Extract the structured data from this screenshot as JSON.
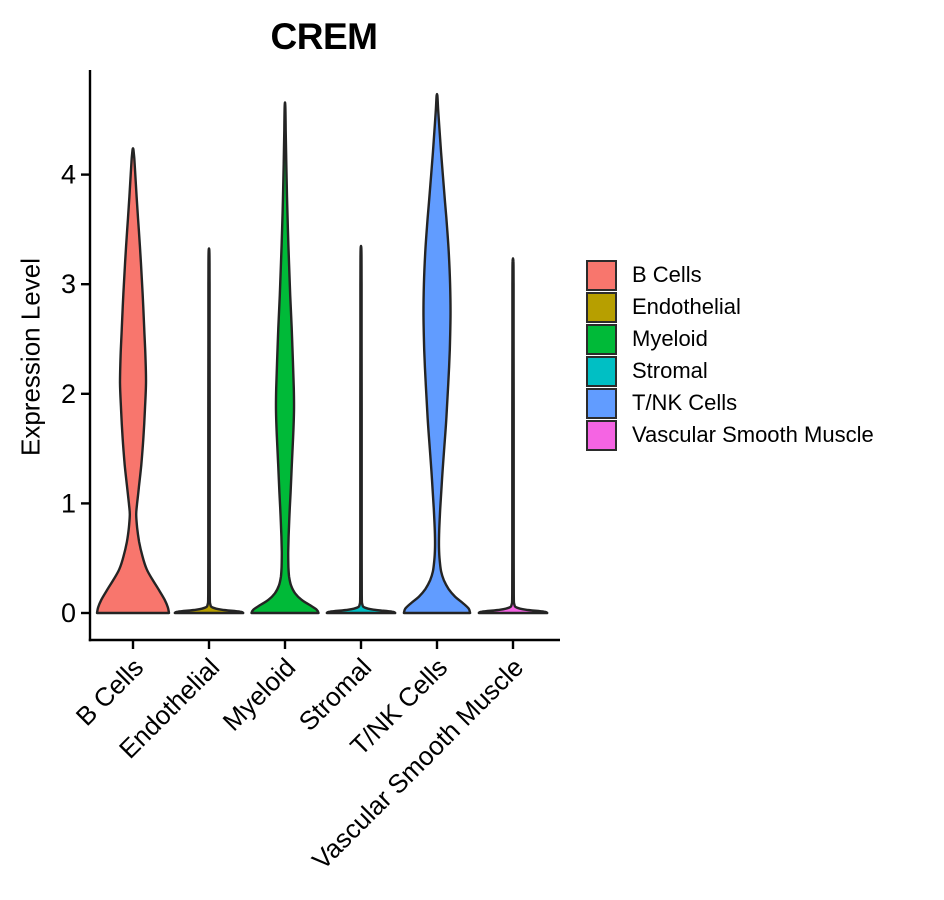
{
  "title": "CREM",
  "chart_data": {
    "type": "violin",
    "title": "CREM",
    "xlabel": "",
    "ylabel": "Expression Level",
    "yticks": [
      0,
      1,
      2,
      3,
      4
    ],
    "ylim": [
      -0.25,
      4.95
    ],
    "grid": false,
    "legend_position": "right",
    "categories": [
      "B Cells",
      "Endothelial",
      "Myeloid",
      "Stromal",
      "T/NK Cells",
      "Vascular Smooth Muscle"
    ],
    "violins": [
      {
        "name": "B Cells",
        "color": "#F8766D",
        "max_expression": 4.23,
        "peak_bulge_at": 2.1,
        "profile": [
          [
            0,
            1.0
          ],
          [
            0.05,
            0.97
          ],
          [
            0.12,
            0.88
          ],
          [
            0.2,
            0.74
          ],
          [
            0.3,
            0.55
          ],
          [
            0.4,
            0.38
          ],
          [
            0.52,
            0.26
          ],
          [
            0.65,
            0.17
          ],
          [
            0.78,
            0.115
          ],
          [
            0.9,
            0.09
          ],
          [
            1.0,
            0.115
          ],
          [
            1.15,
            0.165
          ],
          [
            1.35,
            0.23
          ],
          [
            1.6,
            0.29
          ],
          [
            1.85,
            0.33
          ],
          [
            2.1,
            0.36
          ],
          [
            2.35,
            0.345
          ],
          [
            2.6,
            0.31
          ],
          [
            2.9,
            0.27
          ],
          [
            3.2,
            0.22
          ],
          [
            3.5,
            0.16
          ],
          [
            3.8,
            0.1
          ],
          [
            4.0,
            0.065
          ],
          [
            4.15,
            0.035
          ],
          [
            4.23,
            0.01
          ]
        ]
      },
      {
        "name": "Endothelial",
        "color": "#B79F00",
        "max_expression": 3.29,
        "peak_bulge_at": 0,
        "profile": [
          [
            0,
            0.95
          ],
          [
            0.012,
            0.86
          ],
          [
            0.03,
            0.35
          ],
          [
            0.05,
            0.1
          ],
          [
            0.08,
            0.035
          ],
          [
            0.15,
            0.022
          ],
          [
            0.5,
            0.02
          ],
          [
            1.5,
            0.02
          ],
          [
            2.5,
            0.018
          ],
          [
            3.0,
            0.016
          ],
          [
            3.29,
            0.012
          ]
        ]
      },
      {
        "name": "Myeloid",
        "color": "#00BA38",
        "max_expression": 4.63,
        "peak_bulge_at": 1.9,
        "profile": [
          [
            0,
            0.93
          ],
          [
            0.03,
            0.88
          ],
          [
            0.07,
            0.7
          ],
          [
            0.12,
            0.46
          ],
          [
            0.18,
            0.28
          ],
          [
            0.25,
            0.17
          ],
          [
            0.33,
            0.115
          ],
          [
            0.42,
            0.095
          ],
          [
            0.55,
            0.09
          ],
          [
            0.7,
            0.1
          ],
          [
            0.9,
            0.125
          ],
          [
            1.1,
            0.155
          ],
          [
            1.35,
            0.19
          ],
          [
            1.6,
            0.225
          ],
          [
            1.85,
            0.25
          ],
          [
            2.05,
            0.245
          ],
          [
            2.3,
            0.22
          ],
          [
            2.6,
            0.185
          ],
          [
            2.9,
            0.145
          ],
          [
            3.2,
            0.11
          ],
          [
            3.5,
            0.08
          ],
          [
            3.8,
            0.055
          ],
          [
            4.1,
            0.035
          ],
          [
            4.4,
            0.02
          ],
          [
            4.63,
            0.008
          ]
        ]
      },
      {
        "name": "Stromal",
        "color": "#00BFC4",
        "max_expression": 3.31,
        "peak_bulge_at": 0,
        "profile": [
          [
            0,
            0.95
          ],
          [
            0.012,
            0.86
          ],
          [
            0.03,
            0.35
          ],
          [
            0.05,
            0.1
          ],
          [
            0.08,
            0.035
          ],
          [
            0.15,
            0.022
          ],
          [
            0.5,
            0.02
          ],
          [
            1.5,
            0.02
          ],
          [
            2.5,
            0.018
          ],
          [
            3.0,
            0.016
          ],
          [
            3.31,
            0.012
          ]
        ]
      },
      {
        "name": "T/NK Cells",
        "color": "#619CFF",
        "max_expression": 4.72,
        "peak_bulge_at": 2.7,
        "profile": [
          [
            0,
            0.92
          ],
          [
            0.04,
            0.88
          ],
          [
            0.09,
            0.72
          ],
          [
            0.15,
            0.5
          ],
          [
            0.22,
            0.32
          ],
          [
            0.3,
            0.19
          ],
          [
            0.38,
            0.115
          ],
          [
            0.48,
            0.075
          ],
          [
            0.6,
            0.055
          ],
          [
            0.75,
            0.06
          ],
          [
            0.95,
            0.09
          ],
          [
            1.2,
            0.135
          ],
          [
            1.5,
            0.2
          ],
          [
            1.8,
            0.265
          ],
          [
            2.1,
            0.315
          ],
          [
            2.4,
            0.355
          ],
          [
            2.7,
            0.375
          ],
          [
            3.0,
            0.365
          ],
          [
            3.3,
            0.325
          ],
          [
            3.6,
            0.26
          ],
          [
            3.9,
            0.185
          ],
          [
            4.2,
            0.115
          ],
          [
            4.45,
            0.06
          ],
          [
            4.6,
            0.03
          ],
          [
            4.72,
            0.01
          ]
        ]
      },
      {
        "name": "Vascular Smooth Muscle",
        "color": "#F564E3",
        "max_expression": 3.21,
        "peak_bulge_at": 0,
        "profile": [
          [
            0,
            0.95
          ],
          [
            0.012,
            0.86
          ],
          [
            0.03,
            0.35
          ],
          [
            0.05,
            0.1
          ],
          [
            0.08,
            0.035
          ],
          [
            0.15,
            0.022
          ],
          [
            0.5,
            0.02
          ],
          [
            1.5,
            0.02
          ],
          [
            2.5,
            0.018
          ],
          [
            3.0,
            0.016
          ],
          [
            3.21,
            0.012
          ]
        ]
      }
    ]
  },
  "legend": {
    "items": [
      {
        "label": "B Cells",
        "color": "#F8766D"
      },
      {
        "label": "Endothelial",
        "color": "#B79F00"
      },
      {
        "label": "Myeloid",
        "color": "#00BA38"
      },
      {
        "label": "Stromal",
        "color": "#00BFC4"
      },
      {
        "label": "T/NK Cells",
        "color": "#619CFF"
      },
      {
        "label": "Vascular Smooth Muscle",
        "color": "#F564E3"
      }
    ]
  },
  "style_colors": {
    "violin_outline": "#242424",
    "axis": "#000000",
    "background": "#ffffff"
  }
}
